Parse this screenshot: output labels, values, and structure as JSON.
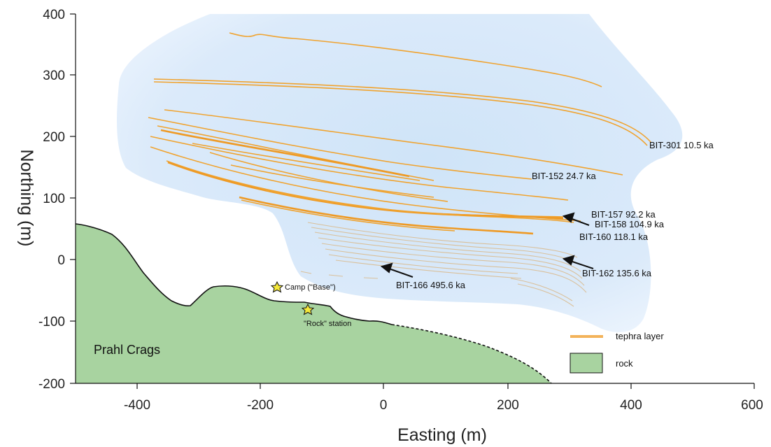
{
  "axes": {
    "xlabel": "Easting (m)",
    "ylabel": "Northing (m)",
    "xticks": [
      "-400",
      "-200",
      "0",
      "200",
      "400",
      "600"
    ],
    "yticks": [
      "400",
      "300",
      "200",
      "100",
      "0",
      "-100",
      "-200"
    ]
  },
  "layers": [
    {
      "id": "BIT-301",
      "label": "BIT-301  10.5 ka"
    },
    {
      "id": "BIT-152",
      "label": "BIT-152 24.7 ka"
    },
    {
      "id": "BIT-157",
      "label": "BIT-157 92.2 ka"
    },
    {
      "id": "BIT-158",
      "label": "BIT-158 104.9 ka"
    },
    {
      "id": "BIT-160",
      "label": "BIT-160 118.1 ka"
    },
    {
      "id": "BIT-162",
      "label": "BIT-162 135.6 ka"
    },
    {
      "id": "BIT-166",
      "label": "BIT-166 495.6 ka"
    }
  ],
  "places": {
    "camp": "Camp (\"Base\")",
    "rock_station": "\"Rock\" station",
    "crags": "Prahl Crags"
  },
  "legend": {
    "tephra": "tephra layer",
    "rock": "rock"
  },
  "colors": {
    "ice": "#d9ebfa",
    "tephra": "#f0a32f",
    "rock": "#a8d3a0",
    "star": "#f5e83a"
  }
}
